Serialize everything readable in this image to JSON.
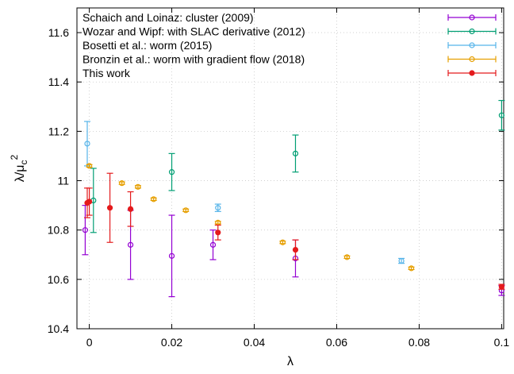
{
  "chart_data": {
    "type": "scatter",
    "title": "",
    "xlabel": "λ",
    "ylabel": "λ/μc2",
    "ylabel_parts": {
      "base": "λ/μ",
      "sub": "c",
      "sup": "2"
    },
    "xlim": [
      -0.003,
      0.1005
    ],
    "ylim": [
      10.4,
      11.7
    ],
    "x_ticks": [
      0,
      0.02,
      0.04,
      0.06,
      0.08,
      0.1
    ],
    "x_tick_labels": [
      "0",
      "0.02",
      "0.04",
      "0.06",
      "0.08",
      "0.1"
    ],
    "y_ticks": [
      10.4,
      10.6,
      10.8,
      11.0,
      11.2,
      11.4,
      11.6
    ],
    "y_tick_labels": [
      "10.4",
      "10.6",
      "10.8",
      "11",
      "11.2",
      "11.4",
      "11.6"
    ],
    "grid": true,
    "legend_position": "top-left",
    "series": [
      {
        "name": "Schaich and Loinaz: cluster (2009)",
        "color": "#9400d3",
        "marker": "open-circle",
        "points": [
          {
            "x": -0.001,
            "y": 10.8,
            "err": 0.1
          },
          {
            "x": 0.01,
            "y": 10.74,
            "err": 0.14
          },
          {
            "x": 0.02,
            "y": 10.695,
            "err": 0.165
          },
          {
            "x": 0.03,
            "y": 10.74,
            "err": 0.06
          },
          {
            "x": 0.05,
            "y": 10.685,
            "err": 0.075
          },
          {
            "x": 0.1,
            "y": 10.555,
            "err": 0.02
          }
        ]
      },
      {
        "name": "Wozar and Wipf: with SLAC derivative (2012)",
        "color": "#009e73",
        "marker": "open-circle",
        "points": [
          {
            "x": 0.001,
            "y": 10.92,
            "err": 0.13
          },
          {
            "x": 0.02,
            "y": 11.035,
            "err": 0.075
          },
          {
            "x": 0.05,
            "y": 11.11,
            "err": 0.075
          },
          {
            "x": 0.1,
            "y": 11.265,
            "err": 0.06
          }
        ]
      },
      {
        "name": "Bosetti et al.: worm (2015)",
        "color": "#56b4e9",
        "marker": "open-circle",
        "points": [
          {
            "x": -0.0005,
            "y": 11.15,
            "err": 0.09
          },
          {
            "x": 0.0312,
            "y": 10.89,
            "err": 0.015
          },
          {
            "x": 0.0757,
            "y": 10.675,
            "err": 0.01
          }
        ]
      },
      {
        "name": "Bronzin et al.: worm with gradient flow (2018)",
        "color": "#e69f00",
        "marker": "open-circle",
        "points": [
          {
            "x": 0.0,
            "y": 11.06,
            "err": 0.005
          },
          {
            "x": 0.0079,
            "y": 10.99,
            "err": 0.005
          },
          {
            "x": 0.0118,
            "y": 10.975,
            "err": 0.005
          },
          {
            "x": 0.0156,
            "y": 10.925,
            "err": 0.005
          },
          {
            "x": 0.0234,
            "y": 10.88,
            "err": 0.005
          },
          {
            "x": 0.0312,
            "y": 10.83,
            "err": 0.005
          },
          {
            "x": 0.0469,
            "y": 10.75,
            "err": 0.005
          },
          {
            "x": 0.0625,
            "y": 10.69,
            "err": 0.005
          },
          {
            "x": 0.0781,
            "y": 10.645,
            "err": 0.005
          }
        ]
      },
      {
        "name": "This work",
        "color": "#e41a1c",
        "marker": "filled-circle",
        "points": [
          {
            "x": -0.0005,
            "y": 10.91,
            "err": 0.06
          },
          {
            "x": 0.0,
            "y": 10.915,
            "err": 0.055
          },
          {
            "x": 0.005,
            "y": 10.89,
            "err": 0.14
          },
          {
            "x": 0.01,
            "y": 10.885,
            "err": 0.07
          },
          {
            "x": 0.0312,
            "y": 10.79,
            "err": 0.03
          },
          {
            "x": 0.05,
            "y": 10.72,
            "err": 0.04
          },
          {
            "x": 0.1,
            "y": 10.57,
            "err": 0.01
          }
        ]
      }
    ]
  }
}
